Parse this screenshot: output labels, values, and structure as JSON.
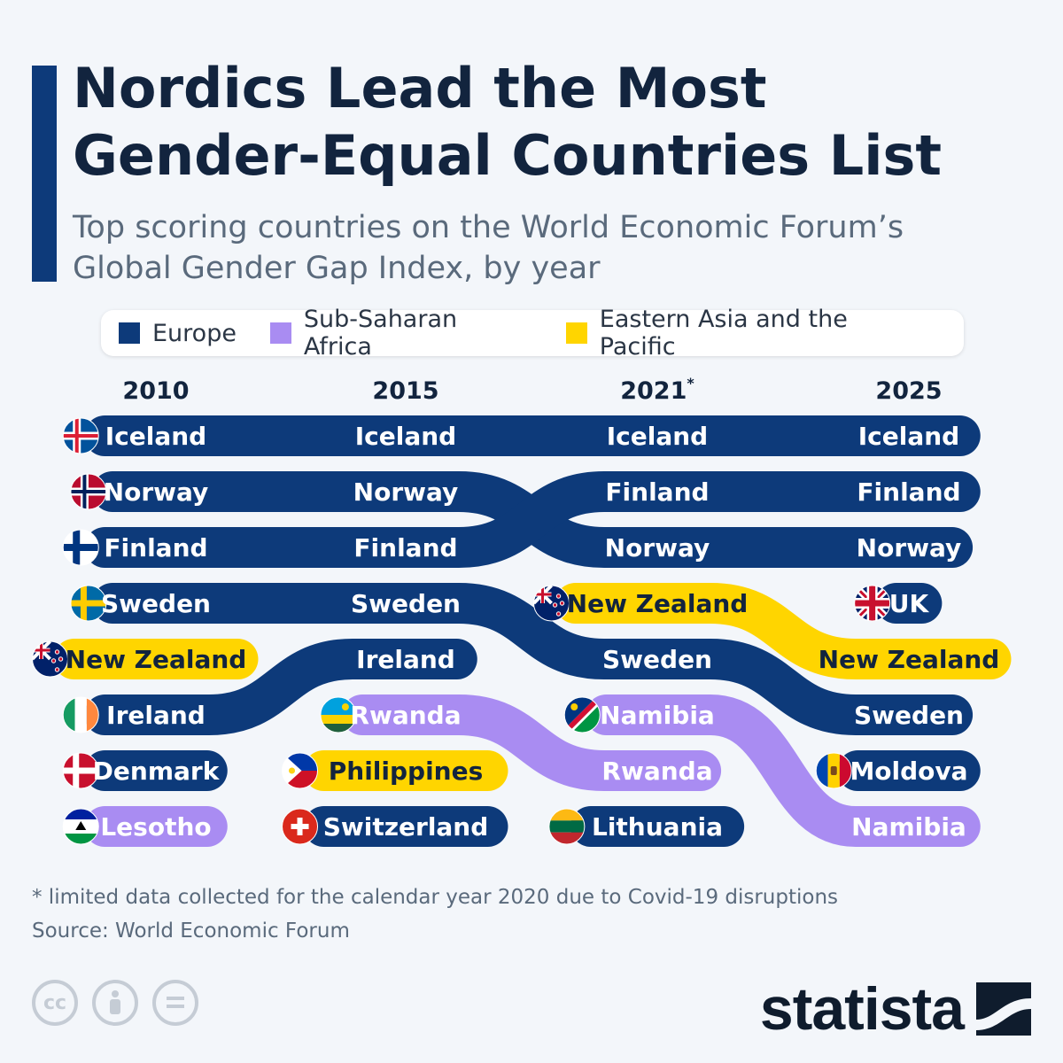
{
  "header": {
    "title": "Nordics Lead the Most Gender-Equal Countries List",
    "subtitle": "Top scoring countries on the World Economic Forum’s Global Gender Gap Index, by year"
  },
  "legend": [
    {
      "label": "Europe",
      "color": "#0d3a7a"
    },
    {
      "label": "Sub-Saharan Africa",
      "color": "#a98cf2"
    },
    {
      "label": "Eastern Asia and the Pacific",
      "color": "#ffd500"
    }
  ],
  "chart_data": {
    "type": "table",
    "title": "Nordics Lead the Most Gender-Equal Countries List",
    "subtitle": "Top scoring countries on the World Economic Forum’s Global Gender Gap Index, by year",
    "years": [
      "2010",
      "2015",
      "2021*",
      "2025"
    ],
    "regions": {
      "Europe": "#0d3a7a",
      "Sub-Saharan Africa": "#a98cf2",
      "Eastern Asia and the Pacific": "#ffd500"
    },
    "rankings": [
      [
        "Iceland",
        "Norway",
        "Finland",
        "Sweden",
        "New Zealand",
        "Ireland",
        "Denmark",
        "Lesotho"
      ],
      [
        "Iceland",
        "Norway",
        "Finland",
        "Sweden",
        "Ireland",
        "Rwanda",
        "Philippines",
        "Switzerland"
      ],
      [
        "Iceland",
        "Finland",
        "Norway",
        "New Zealand",
        "Sweden",
        "Namibia",
        "Rwanda",
        "Lithuania"
      ],
      [
        "Iceland",
        "Finland",
        "Norway",
        "UK",
        "New Zealand",
        "Sweden",
        "Moldova",
        "Namibia"
      ]
    ],
    "country_region": {
      "Iceland": "Europe",
      "Norway": "Europe",
      "Finland": "Europe",
      "Sweden": "Europe",
      "Ireland": "Europe",
      "Denmark": "Europe",
      "Switzerland": "Europe",
      "Lithuania": "Europe",
      "UK": "Europe",
      "Moldova": "Europe",
      "New Zealand": "Eastern Asia and the Pacific",
      "Philippines": "Eastern Asia and the Pacific",
      "Lesotho": "Sub-Saharan Africa",
      "Rwanda": "Sub-Saharan Africa",
      "Namibia": "Sub-Saharan Africa"
    },
    "flag_icons": {
      "Iceland": "iceland-flag-icon",
      "Norway": "norway-flag-icon",
      "Finland": "finland-flag-icon",
      "Sweden": "sweden-flag-icon",
      "New Zealand": "new-zealand-flag-icon",
      "Ireland": "ireland-flag-icon",
      "Denmark": "denmark-flag-icon",
      "Lesotho": "lesotho-flag-icon",
      "Rwanda": "rwanda-flag-icon",
      "Philippines": "philippines-flag-icon",
      "Switzerland": "switzerland-flag-icon",
      "Namibia": "namibia-flag-icon",
      "Lithuania": "lithuania-flag-icon",
      "UK": "uk-flag-icon",
      "Moldova": "moldova-flag-icon"
    }
  },
  "footer": {
    "footnote": "* limited data collected for the calendar year 2020 due to Covid-19 disruptions",
    "source": "Source: World Economic Forum",
    "license_icons": [
      "creative-commons-icon",
      "attribution-icon",
      "no-derivatives-icon"
    ],
    "brand": "statista",
    "brand_logo_icon": "statista-logo-icon"
  }
}
